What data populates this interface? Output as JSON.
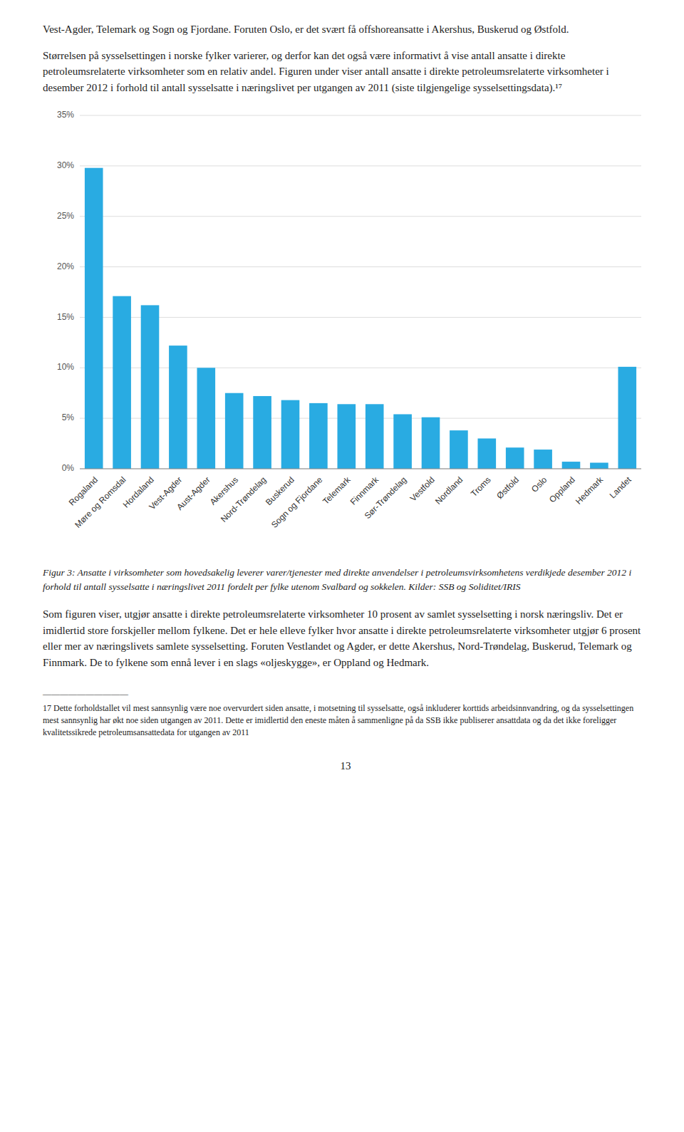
{
  "chart_data": {
    "type": "bar",
    "categories": [
      "Rogaland",
      "Møre og Romsdal",
      "Hordaland",
      "Vest-Agder",
      "Aust-Agder",
      "Akershus",
      "Nord-Trøndelag",
      "Buskerud",
      "Sogn og Fjordane",
      "Telemark",
      "Finnmark",
      "Sør-Trøndelag",
      "Vestfold",
      "Nordland",
      "Troms",
      "Østfold",
      "Oslo",
      "Oppland",
      "Hedmark",
      "Landet"
    ],
    "values": [
      29.8,
      17.1,
      16.2,
      12.2,
      10.0,
      7.5,
      7.2,
      6.8,
      6.5,
      6.4,
      6.4,
      5.4,
      5.1,
      3.8,
      3.0,
      2.1,
      1.9,
      0.7,
      0.6,
      10.1
    ],
    "color": "#29ABE2",
    "ylim": [
      0,
      35
    ],
    "yticks": [
      {
        "value": 0,
        "label": "0%"
      },
      {
        "value": 5,
        "label": "5%"
      },
      {
        "value": 10,
        "label": "10%"
      },
      {
        "value": 15,
        "label": "15%"
      },
      {
        "value": 20,
        "label": "20%"
      },
      {
        "value": 25,
        "label": "25%"
      },
      {
        "value": 30,
        "label": "30%"
      },
      {
        "value": 35,
        "label": "35%"
      }
    ],
    "grid": true,
    "annotations": [
      "Vest-Agder, Telemark og Sogn og Fjordane. Foruten Oslo, er det svært få offshoreansatte i Akershus, Buskerud og Østfold.",
      "Størrelsen på sysselsettingen i norske fylker varierer, og derfor kan det også være informativt å vise antall ansatte i direkte petroleumsrelaterte virksomheter som en relativ andel. Figuren under viser antall ansatte i direkte petroleumsrelaterte virksomheter i desember 2012 i forhold til antall sysselsatte i næringslivet per utgangen av 2011 (siste tilgjengelige sysselsettingsdata).¹⁷",
      "Figur 3: Ansatte i virksomheter som hovedsakelig leverer varer/tjenester med direkte anvendelser i petroleumsvirksomhetens verdikjede desember 2012 i forhold til antall sysselsatte i næringslivet 2011 fordelt per fylke utenom Svalbard og sokkelen. Kilder: SSB og Soliditet/IRIS",
      "Som figuren viser, utgjør ansatte i direkte petroleumsrelaterte virksomheter 10 prosent av samlet sysselsetting i norsk næringsliv. Det er imidlertid store forskjeller mellom fylkene. Det er hele elleve fylker hvor ansatte i direkte petroleumsrelaterte virksomheter utgjør 6 prosent eller mer av næringslivets samlete sysselsetting. Foruten Vestlandet og Agder, er dette Akershus, Nord-Trøndelag, Buskerud, Telemark og Finnmark. De to fylkene som ennå lever i en slags «oljeskygge», er Oppland og Hedmark.",
      "——————————",
      "17 Dette forholdstallet vil mest sannsynlig være noe overvurdert siden ansatte, i motsetning til sysselsatte, også inkluderer korttids arbeidsinnvandring, og da sysselsettingen mest sannsynlig har økt noe siden utgangen av 2011. Dette er imidlertid den eneste måten å sammenligne på da SSB ikke publiserer ansattdata og da det ikke foreligger kvalitetssikrede petroleumsansattedata for utgangen av 2011",
      "13"
    ]
  }
}
